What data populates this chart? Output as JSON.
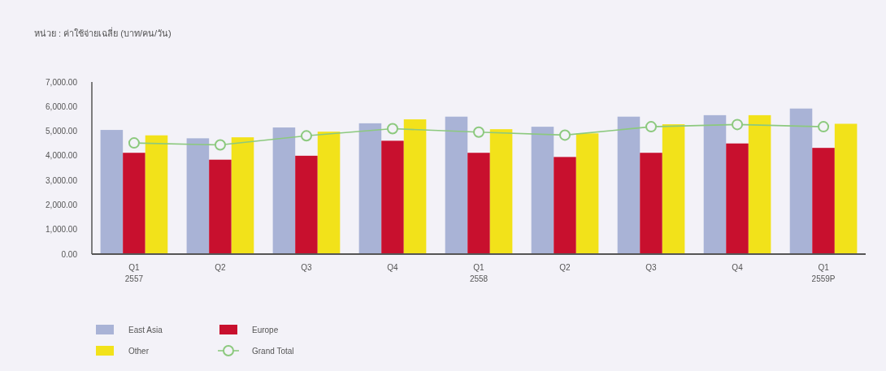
{
  "chart_data": {
    "type": "bar",
    "ylabel": "หน่วย : ค่าใช้จ่ายเฉลี่ย (บาท/คน/วัน)",
    "categories": [
      "Q1\n2557",
      "Q2",
      "Q3",
      "Q4",
      "Q1\n2558",
      "Q2",
      "Q3",
      "Q4",
      "Q1\n2559P"
    ],
    "series": [
      {
        "name": "East Asia",
        "color": "#a9b3d6",
        "values": [
          5050,
          4710,
          5150,
          5320,
          5590,
          5180,
          5590,
          5650,
          5920
        ]
      },
      {
        "name": "Europe",
        "color": "#c8102e",
        "values": [
          4120,
          3840,
          4000,
          4610,
          4120,
          3950,
          4120,
          4500,
          4320
        ]
      },
      {
        "name": "Other",
        "color": "#f2e21a",
        "values": [
          4830,
          4750,
          4980,
          5480,
          5080,
          4910,
          5280,
          5650,
          5300
        ]
      },
      {
        "name": "Grand Total",
        "type": "line",
        "color": "#8cc97e",
        "marker": "circle",
        "values": [
          4520,
          4440,
          4810,
          5100,
          4960,
          4840,
          5180,
          5270,
          5180
        ]
      }
    ],
    "ylim": [
      0,
      7000
    ],
    "yticks": [
      {
        "value": 0,
        "label": "0.00"
      },
      {
        "value": 1000,
        "label": "1,000.00"
      },
      {
        "value": 2000,
        "label": "2,000.00"
      },
      {
        "value": 3000,
        "label": "3,000.00"
      },
      {
        "value": 4000,
        "label": "4,000.00"
      },
      {
        "value": 5000,
        "label": "5,000.00"
      },
      {
        "value": 6000,
        "label": "6,000.00"
      },
      {
        "value": 7000,
        "label": "7,000.00"
      }
    ],
    "legend": "bottom left",
    "grid": false
  }
}
